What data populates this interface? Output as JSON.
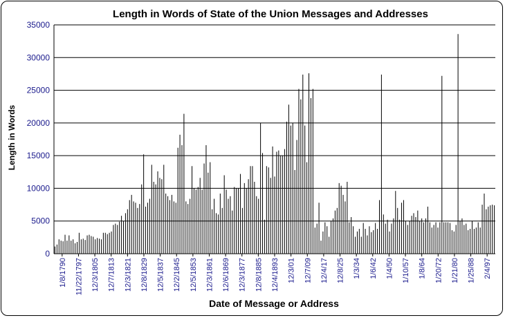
{
  "chart_data": {
    "type": "bar",
    "title": "Length in Words of State of the Union Messages and Addresses",
    "xlabel": "Date of Message or Address",
    "ylabel": "Length in Words",
    "ylim": [
      0,
      35000
    ],
    "yticks": [
      0,
      5000,
      10000,
      15000,
      20000,
      25000,
      30000,
      35000
    ],
    "xtick_labels": [
      "1/8/1790",
      "11/22/1797",
      "12/3/1805",
      "12/7/1813",
      "12/3/1821",
      "12/8/1829",
      "12/5/1837",
      "12/2/1845",
      "12/5/1853",
      "12/3/1861",
      "12/6/1869",
      "12/3/1877",
      "12/8/1885",
      "12/4/1893",
      "12/3/01",
      "12/7/09",
      "12/4/17",
      "12/8/25",
      "1/3/34",
      "1/6/42",
      "1/4/50",
      "1/10/57",
      "1/8/64",
      "1/20/72",
      "1/21/80",
      "1/25/88",
      "2/4/97"
    ],
    "grid": true,
    "legend": "none",
    "bar_color": "#000000",
    "values": [
      1100,
      1400,
      2200,
      2000,
      1900,
      2900,
      2000,
      2800,
      2000,
      2200,
      1600,
      1800,
      3200,
      2200,
      2300,
      2100,
      2800,
      2900,
      2700,
      2600,
      2200,
      2400,
      2300,
      2200,
      3200,
      3200,
      3000,
      3200,
      3400,
      4400,
      4600,
      4400,
      4900,
      5800,
      5000,
      6200,
      6800,
      8200,
      9000,
      8000,
      7800,
      7000,
      7600,
      10600,
      15200,
      7200,
      7800,
      8400,
      13600,
      11000,
      10600,
      12600,
      11600,
      11400,
      13600,
      9200,
      8800,
      8200,
      9000,
      8000,
      7800,
      16200,
      18200,
      16600,
      21400,
      8000,
      7600,
      8400,
      13400,
      10000,
      9800,
      10200,
      11600,
      9800,
      13800,
      16600,
      12400,
      14000,
      6800,
      8400,
      6200,
      6000,
      9200,
      7000,
      12000,
      9800,
      8400,
      8800,
      6600,
      10200,
      10000,
      10000,
      12200,
      7000,
      10800,
      10000,
      11400,
      13400,
      13400,
      11000,
      8800,
      8400,
      20000,
      15400,
      5200,
      13400,
      13200,
      11600,
      16400,
      11800,
      15600,
      15800,
      15000,
      15000,
      16000,
      20200,
      22800,
      19600,
      20000,
      12800,
      17400,
      25200,
      23600,
      27400,
      19600,
      14000,
      27600,
      23800,
      25200,
      4000,
      4600,
      7800,
      2000,
      3400,
      4800,
      4200,
      2600,
      5000,
      5400,
      6600,
      7000,
      10800,
      10400,
      9000,
      8000,
      11000,
      4800,
      5600,
      4200,
      2600,
      3400,
      3800,
      2600,
      4700,
      3800,
      2800,
      4200,
      3300,
      3600,
      4700,
      3800,
      8200,
      27400,
      6000,
      4600,
      5200,
      3400,
      4600,
      5400,
      9600,
      7000,
      5200,
      7800,
      8200,
      5000,
      4400,
      5000,
      5800,
      6200,
      5600,
      6600,
      5000,
      5400,
      4800,
      5400,
      7200,
      4800,
      4000,
      4400,
      4800,
      4000,
      4800,
      27200,
      4800,
      4800,
      4800,
      4700,
      3600,
      3400,
      4400,
      33600,
      5000,
      5400,
      4400,
      4600,
      3600,
      3800,
      5000,
      3800,
      4000,
      4800,
      4000,
      7500,
      9200,
      6800,
      7200,
      7400,
      7500,
      7400
    ]
  }
}
